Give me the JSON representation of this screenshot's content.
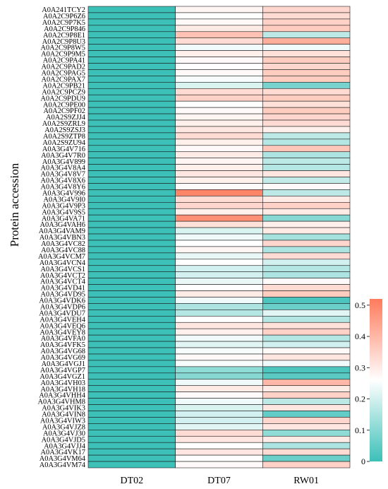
{
  "chart_data": {
    "type": "heatmap",
    "ylabel": "Protein accession",
    "columns": [
      "DT02",
      "DT07",
      "RW01"
    ],
    "rows": [
      "A0A241TCY2",
      "A0A2C9P6Z6",
      "A0A2C9P7K5",
      "A0A2C9P846",
      "A0A2C9P8E1",
      "A0A2C9P8U3",
      "A0A2C9P8W5",
      "A0A2C9P9M5",
      "A0A2C9PA41",
      "A0A2C9PAD2",
      "A0A2C9PAG5",
      "A0A2C9PAX7",
      "A0A2C9PB21",
      "A0A2C9PCZ9",
      "A0A2C9PDU9",
      "A0A2C9PE00",
      "A0A2C9PF02",
      "A0A2S9ZJJ4",
      "A0A2S9ZRL9",
      "A0A2S9ZSJ3",
      "A0A2S9ZTP8",
      "A0A2S9ZU94",
      "A0A3G4V716",
      "A0A3G4V7R0",
      "A0A3G4V899",
      "A0A3G4V8A4",
      "A0A3G4V8V7",
      "A0A3G4V8X6",
      "A0A3G4V8Y6",
      "A0A3G4V996",
      "A0A3G4V9I0",
      "A0A3G4V9P3",
      "A0A3G4V9S5",
      "A0A3G4VA71",
      "A0A3G4VAH6",
      "A0A3G4VAM9",
      "A0A3G4VBN3",
      "A0A3G4VC82",
      "A0A3G4VC88",
      "A0A3G4VCM7",
      "A0A3G4VCN4",
      "A0A3G4VCS1",
      "A0A3G4VCT2",
      "A0A3G4VCT4",
      "A0A3G4VD41",
      "A0A3G4VD95",
      "A0A3G4VDK6",
      "A0A3G4VDP6",
      "A0A3G4VDU7",
      "A0A3G4VEH4",
      "A0A3G4VEQ6",
      "A0A3G4VEY8",
      "A0A3G4VFA0",
      "A0A3G4VFK5",
      "A0A3G4VG68",
      "A0A3G4VG69",
      "A0A3G4VGJ1",
      "A0A3G4VGP7",
      "A0A3G4VGZ1",
      "A0A3G4VH03",
      "A0A3G4VH18",
      "A0A3G4VHH4",
      "A0A3G4VHM8",
      "A0A3G4VIK3",
      "A0A3G4VIN8",
      "A0A3G4VIW3",
      "A0A3G4VJZ8",
      "A0A3G4VJ30",
      "A0A3G4VJD5",
      "A0A3G4VJJ4",
      "A0A3G4VK17",
      "A0A3G4VM64",
      "A0A3G4VM74"
    ],
    "values": {
      "DT02": [
        0,
        0,
        0,
        0,
        0,
        0,
        0,
        0,
        0,
        0,
        0,
        0,
        0,
        0,
        0,
        0,
        0,
        0,
        0,
        0,
        0,
        0,
        0,
        0,
        0,
        0,
        0,
        0,
        0,
        0,
        0,
        0,
        0,
        0,
        0,
        0,
        0,
        0,
        0,
        0,
        0,
        0,
        0,
        0,
        0,
        0,
        0,
        0,
        0,
        0,
        0,
        0,
        0,
        0,
        0,
        0,
        0,
        0,
        0,
        0,
        0,
        0,
        0,
        0,
        0,
        0,
        0,
        0,
        0,
        0,
        0,
        0,
        0
      ],
      "DT07": [
        0.28,
        0.26,
        0.27,
        0.3,
        0.38,
        0.33,
        0.24,
        0.29,
        0.27,
        0.26,
        0.27,
        0.25,
        0.21,
        0.33,
        0.35,
        0.26,
        0.27,
        0.28,
        0.29,
        0.31,
        0.33,
        0.29,
        0.27,
        0.3,
        0.28,
        0.29,
        0.31,
        0.29,
        0.27,
        0.5,
        0.33,
        0.34,
        0.29,
        0.48,
        0.32,
        0.21,
        0.24,
        0.26,
        0.28,
        0.23,
        0.26,
        0.2,
        0.2,
        0.23,
        0.26,
        0.3,
        0.24,
        0.15,
        0.16,
        0.26,
        0.31,
        0.29,
        0.24,
        0.22,
        0.25,
        0.27,
        0.25,
        0.11,
        0.1,
        0.24,
        0.3,
        0.27,
        0.24,
        0.21,
        0.2,
        0.2,
        0.22,
        0.33,
        0.31,
        0.26,
        0.31,
        0.26,
        0.27
      ],
      "RW01": [
        0.34,
        0.33,
        0.35,
        0.36,
        0.17,
        0.42,
        0.24,
        0.32,
        0.36,
        0.34,
        0.36,
        0.36,
        0.08,
        0.33,
        0.36,
        0.32,
        0.36,
        0.34,
        0.33,
        0.29,
        0.17,
        0.16,
        0.37,
        0.15,
        0.17,
        0.16,
        0.31,
        0.18,
        0.27,
        0.17,
        0.3,
        0.35,
        0.3,
        0.1,
        0.29,
        0.3,
        0.14,
        0.34,
        0.15,
        0.33,
        0.2,
        0.16,
        0.15,
        0.27,
        0.33,
        0.36,
        0.02,
        0.06,
        0.22,
        0.16,
        0.32,
        0.35,
        0.16,
        0.2,
        0.27,
        0.31,
        0.24,
        0.02,
        0.04,
        0.4,
        0.3,
        0.35,
        0.17,
        0.31,
        0.05,
        0.34,
        0.31,
        0.11,
        0.3,
        0.15,
        0.33,
        0.06,
        0.35
      ]
    },
    "colorbar": {
      "min": 0,
      "max": 0.52,
      "ticks": [
        0,
        0.1,
        0.2,
        0.3,
        0.4,
        0.5
      ],
      "colors": {
        "low": "#3cc0b8",
        "mid": "#ffffff",
        "high": "#ff7b5c"
      },
      "mid_value": 0.26
    }
  }
}
